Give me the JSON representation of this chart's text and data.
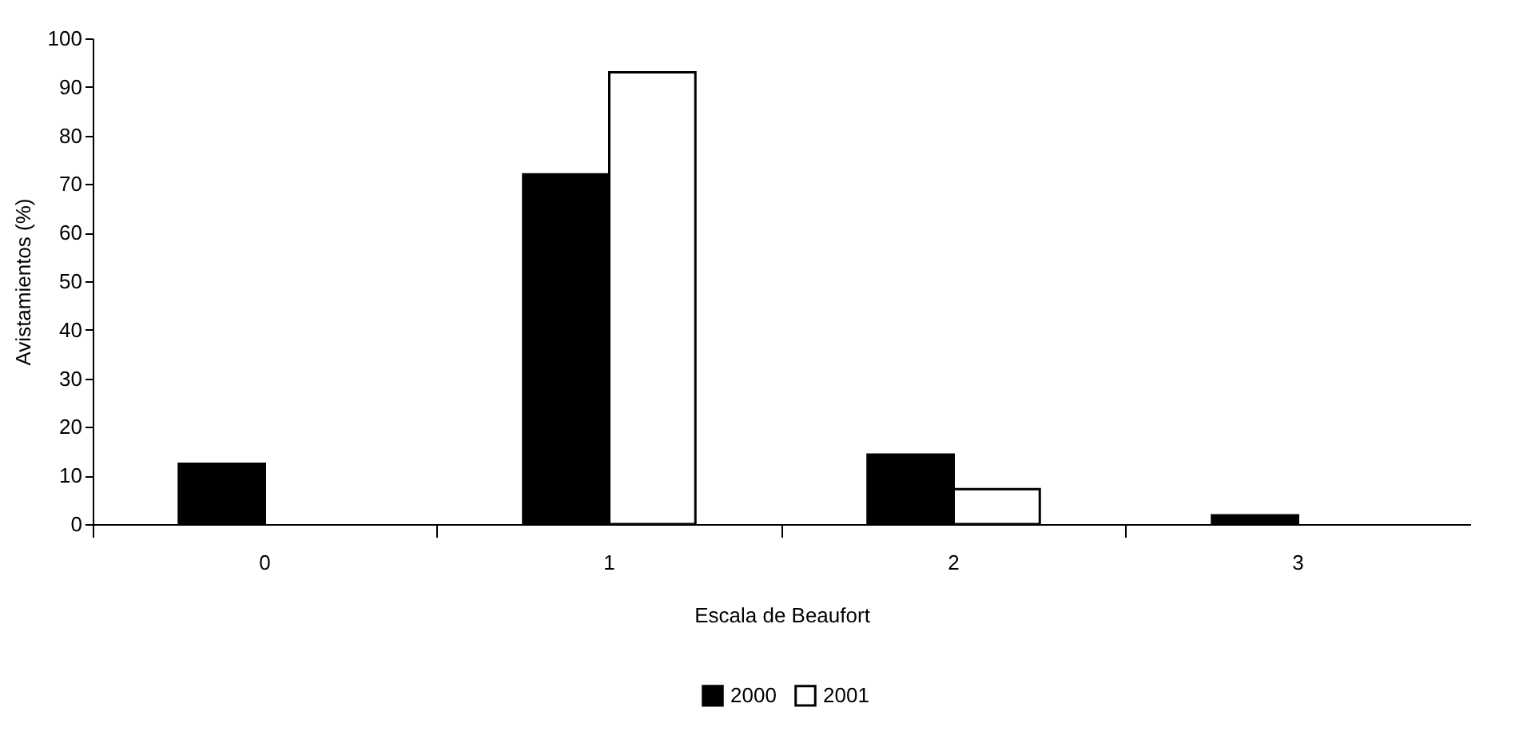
{
  "chart_data": {
    "type": "bar",
    "xlabel": "Escala de Beaufort",
    "ylabel": "Avistamientos (%)",
    "categories": [
      "0",
      "1",
      "2",
      "3"
    ],
    "series": [
      {
        "name": "2000",
        "color": "#000000",
        "values": [
          12.4,
          72,
          14.3,
          1.8
        ]
      },
      {
        "name": "2001",
        "color": "#ffffff",
        "values": [
          null,
          93,
          7.2,
          null
        ]
      }
    ],
    "ylim": [
      0,
      100
    ],
    "yticks": [
      0,
      10,
      20,
      30,
      40,
      50,
      60,
      70,
      80,
      90,
      100
    ],
    "grid": false,
    "legend": "bottom"
  }
}
